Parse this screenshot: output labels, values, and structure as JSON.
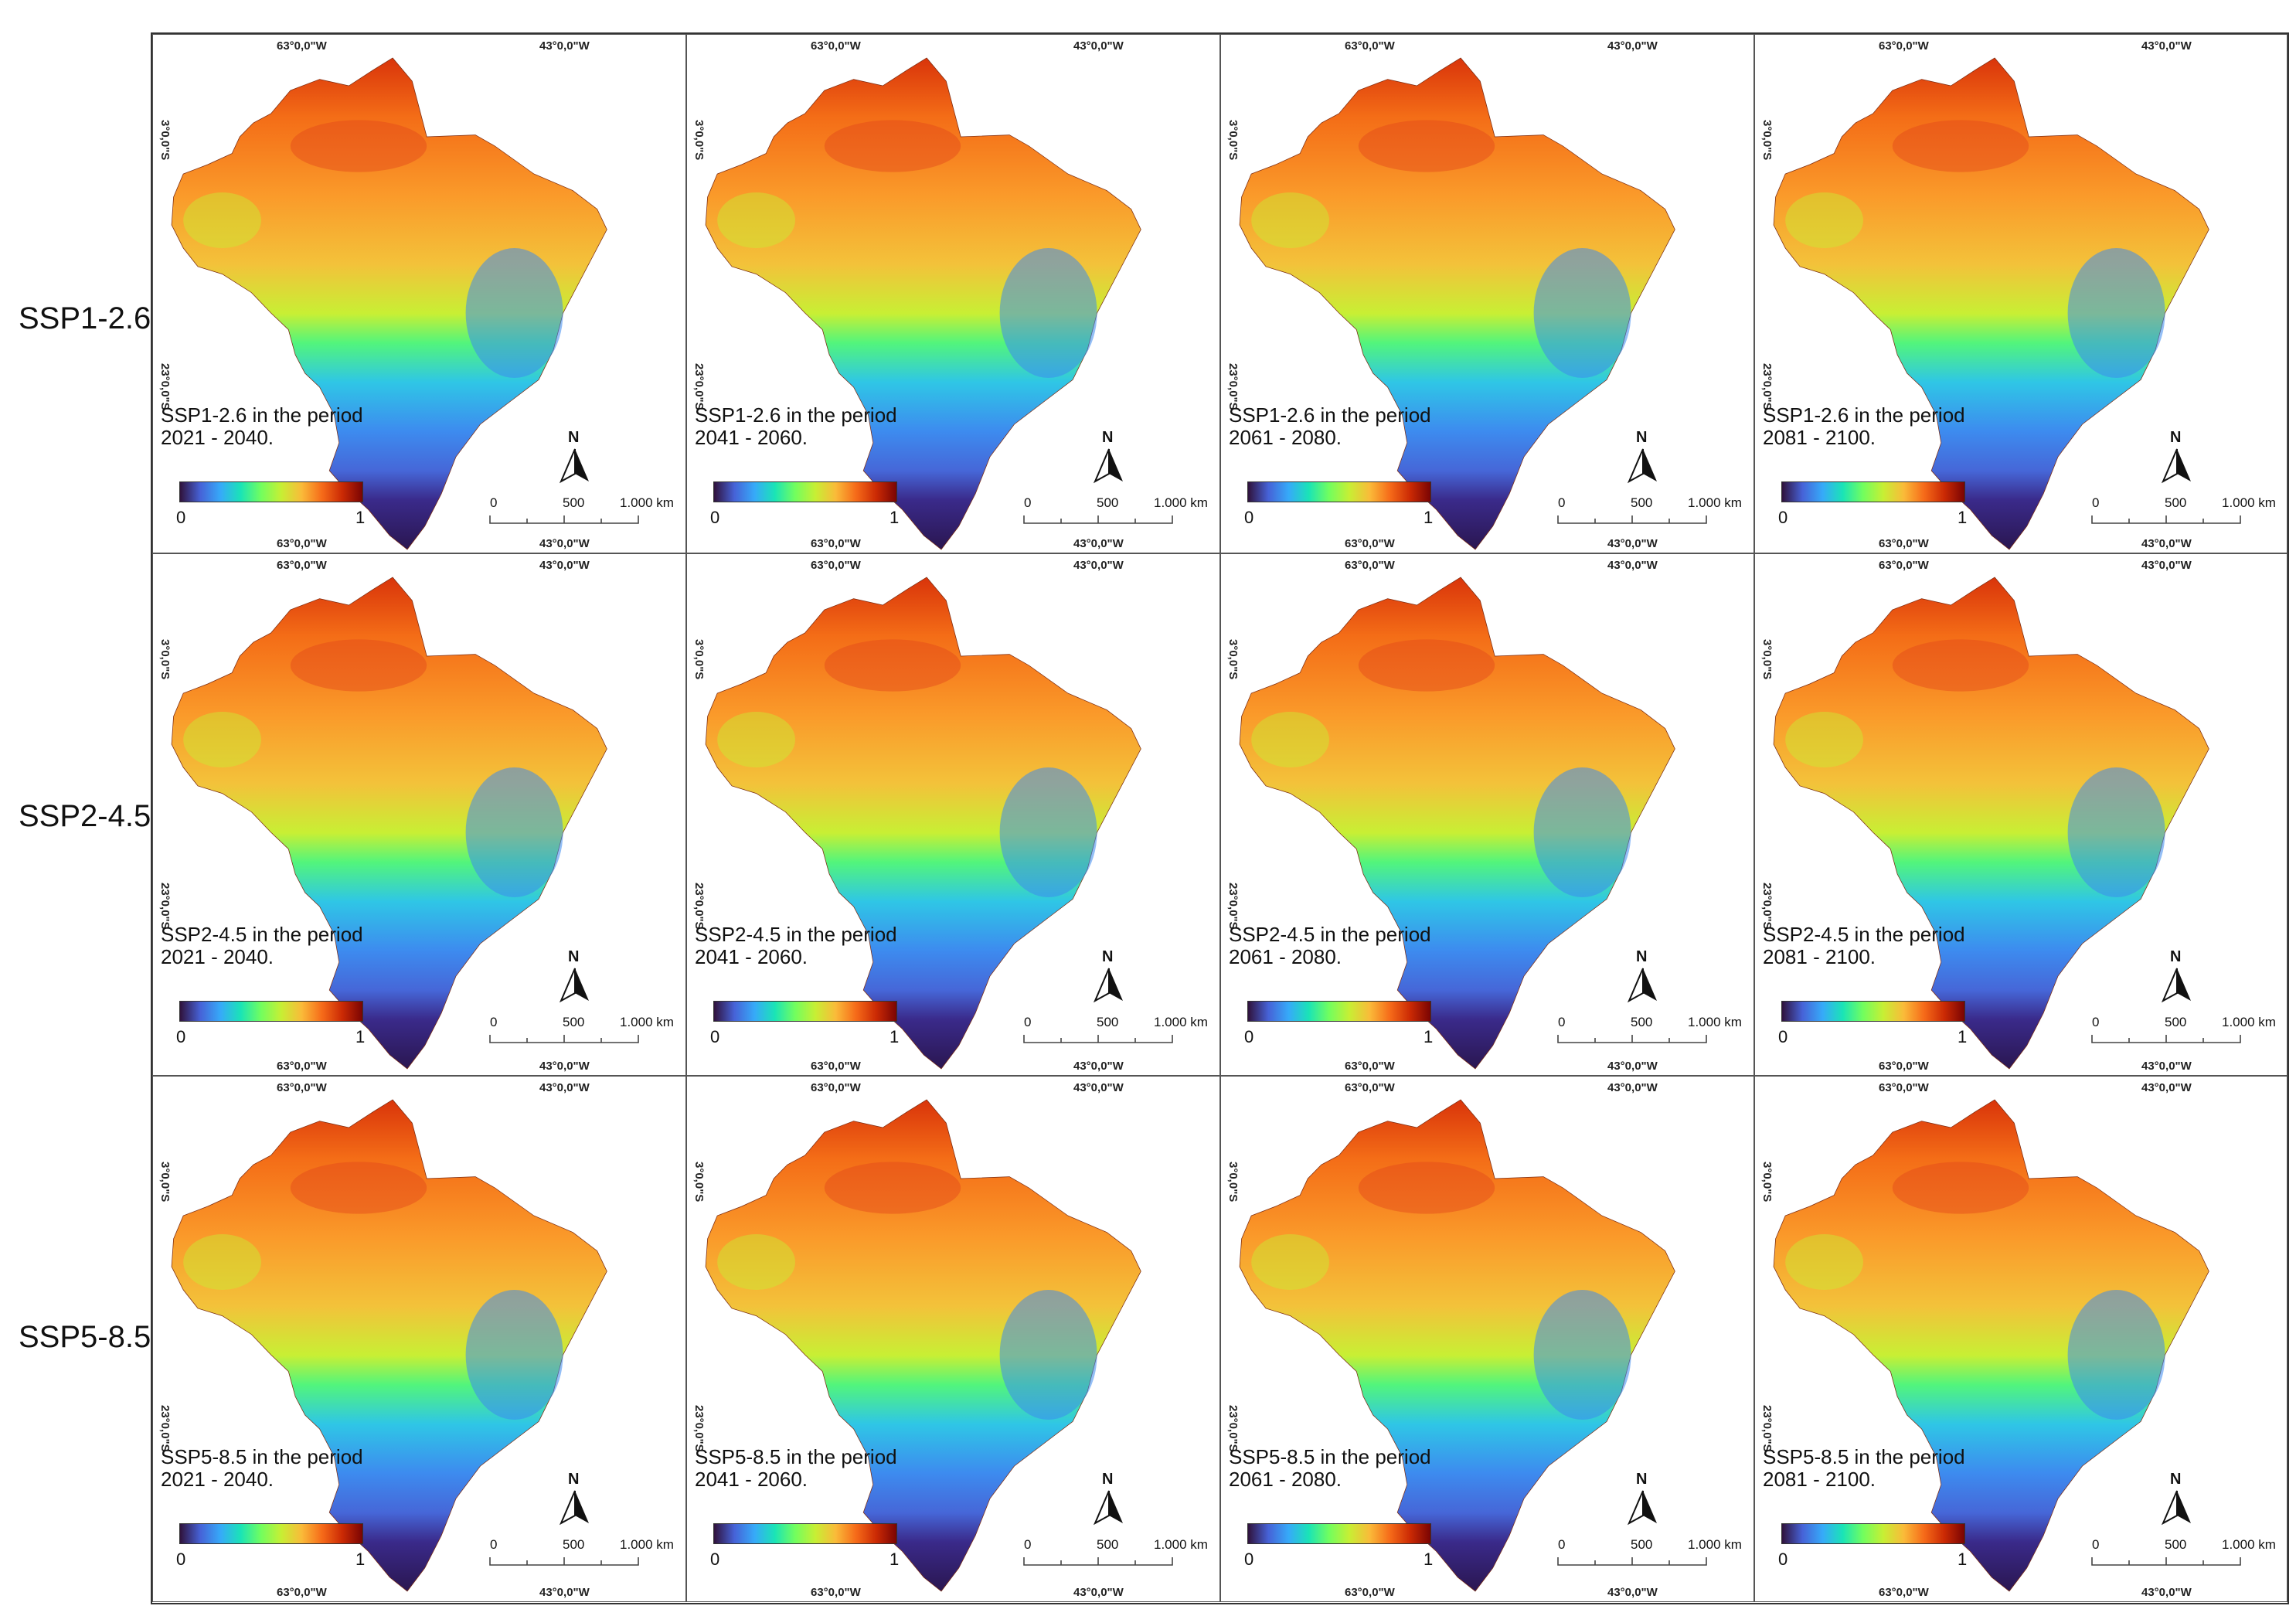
{
  "row_labels": [
    "SSP1-2.6",
    "SSP2-4.5",
    "SSP5-8.5"
  ],
  "panels": [
    {
      "caption_line1": "SSP1-2.6 in the period",
      "caption_line2": "2021 - 2040."
    },
    {
      "caption_line1": "SSP1-2.6 in the period",
      "caption_line2": "2041 - 2060."
    },
    {
      "caption_line1": "SSP1-2.6 in the period",
      "caption_line2": "2061 - 2080."
    },
    {
      "caption_line1": "SSP1-2.6 in the period",
      "caption_line2": "2081 - 2100."
    },
    {
      "caption_line1": "SSP2-4.5 in the period",
      "caption_line2": "2021 - 2040."
    },
    {
      "caption_line1": "SSP2-4.5 in the period",
      "caption_line2": "2041 - 2060."
    },
    {
      "caption_line1": "SSP2-4.5 in the period",
      "caption_line2": "2061 - 2080."
    },
    {
      "caption_line1": "SSP2-4.5 in the period",
      "caption_line2": "2081 - 2100."
    },
    {
      "caption_line1": "SSP5-8.5 in the period",
      "caption_line2": "2021 - 2040."
    },
    {
      "caption_line1": "SSP5-8.5 in the period",
      "caption_line2": "2041 - 2060."
    },
    {
      "caption_line1": "SSP5-8.5 in the period",
      "caption_line2": "2061 - 2080."
    },
    {
      "caption_line1": "SSP5-8.5 in the period",
      "caption_line2": "2081 - 2100."
    }
  ],
  "coords": {
    "lon_west": "63°0,0\"W",
    "lon_east": "43°0,0\"W",
    "lat_north": "3°0,0\"S",
    "lat_south": "23°0,0\"S"
  },
  "colorbar": {
    "min": "0",
    "max": "1",
    "colormap": "turbo"
  },
  "north_arrow": "N",
  "scalebar": {
    "left": "0",
    "mid": "500",
    "right": "1.000 km"
  }
}
